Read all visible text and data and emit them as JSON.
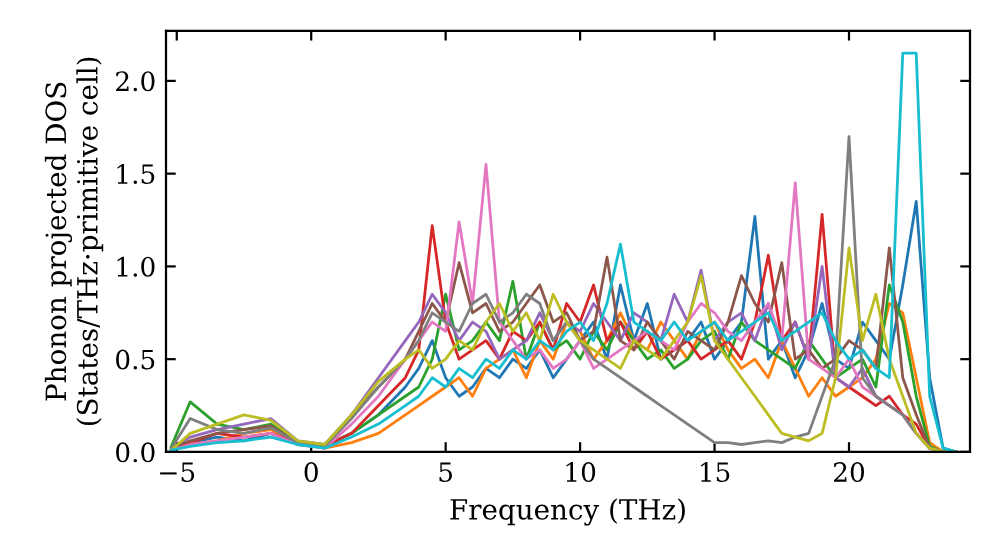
{
  "chart_data": {
    "type": "line",
    "xlabel": "Frequency (THz)",
    "ylabel": "Phonon projected DOS\n(States/THz·primitive cell)",
    "xlim": [
      -5.4,
      24.5
    ],
    "ylim": [
      0,
      2.27
    ],
    "xticks": [
      {
        "value": -5,
        "label": "−5"
      },
      0,
      5,
      10,
      15,
      20
    ],
    "yticks": [
      {
        "value": 0,
        "label": "0.0"
      },
      {
        "value": 0.5,
        "label": "0.5"
      },
      {
        "value": 1,
        "label": "1.0"
      },
      {
        "value": 1.5,
        "label": "1.5"
      },
      {
        "value": 2,
        "label": "2.0"
      }
    ],
    "grid": false,
    "marker": "none",
    "line_style": "solid",
    "x": [
      -5.2,
      -4.5,
      -3.5,
      -2.5,
      -1.5,
      -0.5,
      0.5,
      1.5,
      2.5,
      3.5,
      4.0,
      4.5,
      5.0,
      5.5,
      6.0,
      6.5,
      7.0,
      7.5,
      8.0,
      8.5,
      9.0,
      9.5,
      10.0,
      10.5,
      11.0,
      11.5,
      12.0,
      12.5,
      13.0,
      13.5,
      14.0,
      14.5,
      15.0,
      15.5,
      16.0,
      16.5,
      17.0,
      17.5,
      18.0,
      18.5,
      19.0,
      19.5,
      20.0,
      20.5,
      21.0,
      21.5,
      22.0,
      22.5,
      23.0,
      23.5,
      24.0
    ],
    "series": [
      {
        "color": "#1f77b4",
        "values": [
          0.01,
          0.05,
          0.08,
          0.06,
          0.1,
          0.04,
          0.03,
          0.1,
          0.2,
          0.35,
          0.45,
          0.6,
          0.4,
          0.3,
          0.35,
          0.45,
          0.4,
          0.5,
          0.45,
          0.55,
          0.4,
          0.5,
          0.6,
          0.7,
          0.5,
          0.9,
          0.6,
          0.8,
          0.5,
          0.55,
          0.6,
          0.7,
          0.5,
          0.6,
          0.7,
          1.27,
          0.5,
          0.6,
          0.4,
          0.55,
          0.8,
          0.5,
          0.45,
          0.7,
          0.6,
          0.5,
          0.9,
          1.35,
          0.4,
          0.02,
          0.0
        ]
      },
      {
        "color": "#ff7f0e",
        "values": [
          0.01,
          0.04,
          0.06,
          0.1,
          0.12,
          0.05,
          0.02,
          0.05,
          0.1,
          0.2,
          0.25,
          0.3,
          0.35,
          0.4,
          0.3,
          0.45,
          0.5,
          0.55,
          0.4,
          0.6,
          0.5,
          0.7,
          0.65,
          0.5,
          0.6,
          0.75,
          0.6,
          0.55,
          0.7,
          0.6,
          0.5,
          0.65,
          0.7,
          0.55,
          0.45,
          0.5,
          0.4,
          0.6,
          0.45,
          0.3,
          0.4,
          0.3,
          0.35,
          0.4,
          0.5,
          0.8,
          0.75,
          0.4,
          0.05,
          0.0,
          0.0
        ]
      },
      {
        "color": "#2ca02c",
        "values": [
          0.03,
          0.27,
          0.15,
          0.12,
          0.15,
          0.05,
          0.03,
          0.1,
          0.2,
          0.3,
          0.35,
          0.5,
          0.85,
          0.55,
          0.6,
          0.7,
          0.6,
          0.92,
          0.5,
          0.7,
          0.55,
          0.6,
          0.5,
          0.65,
          0.55,
          0.7,
          0.6,
          0.5,
          0.55,
          0.45,
          0.5,
          0.6,
          0.65,
          0.5,
          0.7,
          0.6,
          0.55,
          0.5,
          0.45,
          0.6,
          0.5,
          0.4,
          0.45,
          0.5,
          0.35,
          0.9,
          0.7,
          0.3,
          0.03,
          0.0,
          0.0
        ]
      },
      {
        "color": "#d62728",
        "values": [
          0.01,
          0.05,
          0.1,
          0.08,
          0.1,
          0.05,
          0.03,
          0.1,
          0.25,
          0.4,
          0.55,
          1.22,
          0.7,
          0.5,
          0.55,
          0.6,
          0.5,
          0.65,
          0.6,
          0.7,
          0.55,
          0.8,
          0.7,
          0.9,
          0.6,
          0.7,
          0.55,
          0.65,
          0.5,
          0.55,
          0.6,
          0.5,
          0.55,
          0.6,
          0.5,
          0.7,
          1.06,
          0.6,
          0.7,
          0.5,
          1.28,
          0.4,
          0.35,
          0.3,
          0.25,
          0.3,
          0.2,
          0.15,
          0.02,
          0.0,
          0.0
        ]
      },
      {
        "color": "#9467bd",
        "values": [
          0.02,
          0.08,
          0.12,
          0.15,
          0.18,
          0.06,
          0.04,
          0.2,
          0.4,
          0.6,
          0.7,
          0.85,
          0.75,
          0.6,
          0.7,
          0.65,
          0.5,
          0.55,
          0.6,
          0.75,
          0.6,
          0.7,
          0.65,
          0.8,
          0.7,
          0.6,
          0.75,
          0.7,
          0.6,
          0.85,
          0.7,
          0.98,
          0.6,
          0.7,
          0.75,
          0.6,
          0.8,
          0.55,
          0.7,
          0.5,
          1.0,
          0.4,
          0.35,
          0.45,
          0.3,
          0.25,
          0.2,
          0.1,
          0.02,
          null,
          null
        ]
      },
      {
        "color": "#8c564b",
        "values": [
          0.02,
          0.06,
          0.1,
          0.12,
          0.14,
          0.05,
          0.03,
          0.2,
          0.35,
          0.5,
          0.65,
          0.8,
          0.7,
          1.02,
          0.75,
          0.8,
          0.65,
          0.7,
          0.8,
          0.9,
          0.7,
          0.75,
          0.6,
          0.65,
          1.05,
          0.6,
          0.55,
          0.7,
          0.6,
          0.5,
          0.65,
          0.6,
          0.55,
          0.7,
          0.95,
          0.8,
          0.7,
          1.02,
          0.5,
          0.55,
          0.45,
          0.5,
          0.6,
          0.55,
          0.45,
          1.1,
          0.4,
          0.2,
          0.02,
          0.0,
          0.0
        ]
      },
      {
        "color": "#e377c2",
        "values": [
          0.01,
          0.04,
          0.06,
          0.08,
          0.1,
          0.04,
          0.02,
          0.15,
          0.3,
          0.5,
          0.6,
          0.7,
          0.65,
          1.24,
          0.8,
          1.55,
          0.7,
          0.6,
          0.5,
          0.55,
          0.45,
          0.5,
          0.6,
          0.45,
          0.5,
          0.55,
          0.6,
          0.65,
          0.6,
          0.55,
          0.7,
          0.8,
          0.75,
          0.65,
          0.6,
          0.7,
          0.8,
          0.6,
          1.45,
          0.5,
          0.45,
          0.4,
          0.5,
          0.35,
          0.3,
          0.25,
          0.2,
          0.1,
          0.02,
          0.0,
          0.0
        ]
      },
      {
        "color": "#7f7f7f",
        "values": [
          0.02,
          0.18,
          0.12,
          0.1,
          0.13,
          0.05,
          0.03,
          0.18,
          0.35,
          0.5,
          0.6,
          0.75,
          0.7,
          0.65,
          0.8,
          0.85,
          0.7,
          0.75,
          0.85,
          0.8,
          0.6,
          0.7,
          0.6,
          0.5,
          0.45,
          0.4,
          0.35,
          0.3,
          0.25,
          0.2,
          0.15,
          0.1,
          0.05,
          0.05,
          0.04,
          0.05,
          0.06,
          0.05,
          0.08,
          0.1,
          0.3,
          0.5,
          1.7,
          0.4,
          0.3,
          0.25,
          0.2,
          0.1,
          0.02,
          0.0,
          0.0
        ]
      },
      {
        "color": "#bcbd22",
        "values": [
          0.01,
          0.1,
          0.15,
          0.2,
          0.17,
          0.06,
          0.04,
          0.2,
          0.38,
          0.5,
          0.55,
          0.45,
          0.5,
          0.6,
          0.55,
          0.7,
          0.8,
          0.65,
          0.75,
          0.6,
          0.85,
          0.7,
          0.6,
          0.55,
          0.5,
          0.45,
          0.6,
          0.55,
          0.5,
          0.6,
          0.7,
          0.95,
          0.6,
          0.5,
          0.4,
          0.3,
          0.2,
          0.1,
          0.08,
          0.06,
          0.1,
          0.4,
          1.1,
          0.6,
          0.85,
          0.5,
          0.3,
          0.1,
          0.02,
          0.0,
          0.0
        ]
      },
      {
        "color": "#17becf",
        "values": [
          0.01,
          0.03,
          0.05,
          0.06,
          0.08,
          0.04,
          0.02,
          0.08,
          0.15,
          0.25,
          0.3,
          0.4,
          0.35,
          0.45,
          0.4,
          0.5,
          0.45,
          0.55,
          0.5,
          0.6,
          0.55,
          0.65,
          0.7,
          0.6,
          0.8,
          1.12,
          0.7,
          0.65,
          0.6,
          0.7,
          0.6,
          0.65,
          0.7,
          0.6,
          0.65,
          0.7,
          0.75,
          0.6,
          0.65,
          0.7,
          0.75,
          0.6,
          0.5,
          0.55,
          0.45,
          0.4,
          2.15,
          2.15,
          0.3,
          0.02,
          0.0
        ]
      }
    ]
  }
}
